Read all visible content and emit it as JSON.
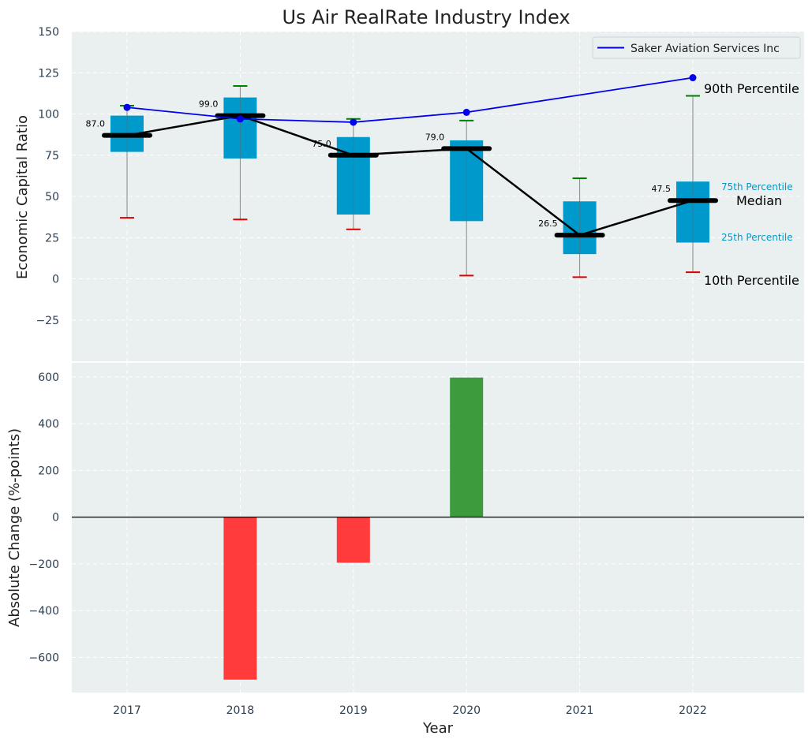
{
  "chart_data": [
    {
      "type": "box",
      "title": "Us Air RealRate Industry Index",
      "ylabel": "Economic Capital Ratio",
      "ylim": [
        -50,
        150
      ],
      "yticks": [
        150,
        125,
        100,
        75,
        50,
        25,
        0,
        -25
      ],
      "grid": true,
      "legend_position": "top-right",
      "legend": [
        "Saker Aviation Services Inc"
      ],
      "categories": [
        "2017",
        "2018",
        "2019",
        "2020",
        "2021",
        "2022"
      ],
      "boxes": [
        {
          "p10": 37,
          "p25": 77,
          "median": 87.0,
          "p75": 99,
          "p90": 105,
          "median_label": "87.0"
        },
        {
          "p10": 36,
          "p25": 73,
          "median": 99.0,
          "p75": 110,
          "p90": 117,
          "median_label": "99.0"
        },
        {
          "p10": 30,
          "p25": 39,
          "median": 75.0,
          "p75": 86,
          "p90": 97,
          "median_label": "75.0"
        },
        {
          "p10": 2,
          "p25": 35,
          "median": 79.0,
          "p75": 84,
          "p90": 96,
          "median_label": "79.0"
        },
        {
          "p10": 1,
          "p25": 15,
          "median": 26.5,
          "p75": 47,
          "p90": 61,
          "median_label": "26.5"
        },
        {
          "p10": 4,
          "p25": 22,
          "median": 47.5,
          "p75": 59,
          "p90": 111,
          "median_label": "47.5"
        }
      ],
      "series": [
        {
          "name": "Saker Aviation Services Inc",
          "color": "#0000ee",
          "values": [
            104,
            97,
            95,
            101,
            null,
            122
          ]
        }
      ],
      "annotations": {
        "p90": "90th Percentile",
        "p75": "75th Percentile",
        "median": "Median",
        "p25": "25th Percentile",
        "p10": "10th Percentile"
      },
      "colors": {
        "box": "#0099cc",
        "median": "#000000",
        "p90_cap": "#008000",
        "p10_cap": "#dd0000",
        "bg": "#eaeff0"
      }
    },
    {
      "type": "bar",
      "xlabel": "Year",
      "ylabel": "Absolute Change (%-points)",
      "ylim": [
        -750,
        660
      ],
      "yticks": [
        600,
        400,
        200,
        0,
        -200,
        -400,
        -600
      ],
      "grid": true,
      "categories": [
        "2017",
        "2018",
        "2019",
        "2020",
        "2021",
        "2022"
      ],
      "values": [
        null,
        -695,
        -195,
        597,
        null,
        null
      ],
      "colors": {
        "positive": "#3d9b3d",
        "negative": "#ff3b3b"
      }
    }
  ]
}
